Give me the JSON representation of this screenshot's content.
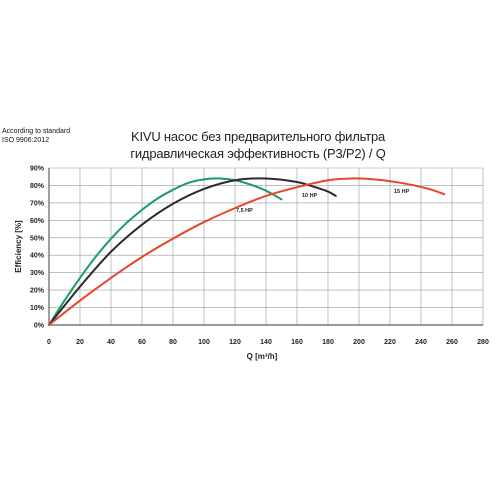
{
  "note": {
    "line1": "According to standard",
    "line2": "ISO 9906:2012"
  },
  "chart_data": {
    "type": "line",
    "title_line1": "KIVU насос без предварительного фильтра",
    "title_line2": "гидравлическая эффективность (P3/P2) / Q",
    "xlabel": "Q [m³/h]",
    "ylabel": "Efficiency [%]",
    "xlim": [
      0,
      280
    ],
    "ylim": [
      0,
      90
    ],
    "x_ticks": [
      0,
      20,
      40,
      60,
      80,
      100,
      120,
      140,
      160,
      180,
      200,
      220,
      240,
      260,
      280
    ],
    "y_ticks": [
      0,
      10,
      20,
      30,
      40,
      50,
      60,
      70,
      80,
      90
    ],
    "y_tick_suffix": "%",
    "grid": true,
    "series": [
      {
        "name": "7,5 HP",
        "color": "#1a9a6a",
        "x": [
          0,
          10,
          20,
          30,
          40,
          50,
          60,
          70,
          80,
          90,
          100,
          110,
          120,
          130,
          140,
          150
        ],
        "y": [
          0,
          14,
          27,
          39,
          49.5,
          58.5,
          66,
          72.5,
          77.5,
          81.5,
          83.5,
          84,
          83,
          80.5,
          77,
          72
        ]
      },
      {
        "name": "10 HP",
        "color": "#2a2a2a",
        "x": [
          0,
          20,
          40,
          60,
          80,
          100,
          120,
          140,
          160,
          170,
          180,
          185
        ],
        "y": [
          0,
          22,
          42,
          57.5,
          69.5,
          78,
          83,
          84,
          82,
          79.5,
          76.5,
          74
        ]
      },
      {
        "name": "15 HP",
        "color": "#e8452a",
        "x": [
          0,
          20,
          40,
          60,
          80,
          100,
          120,
          140,
          160,
          180,
          195,
          210,
          230,
          245,
          255
        ],
        "y": [
          0,
          14,
          27,
          39,
          49.5,
          59,
          67,
          74,
          79,
          83,
          84,
          83.5,
          81,
          78,
          75
        ]
      }
    ]
  }
}
